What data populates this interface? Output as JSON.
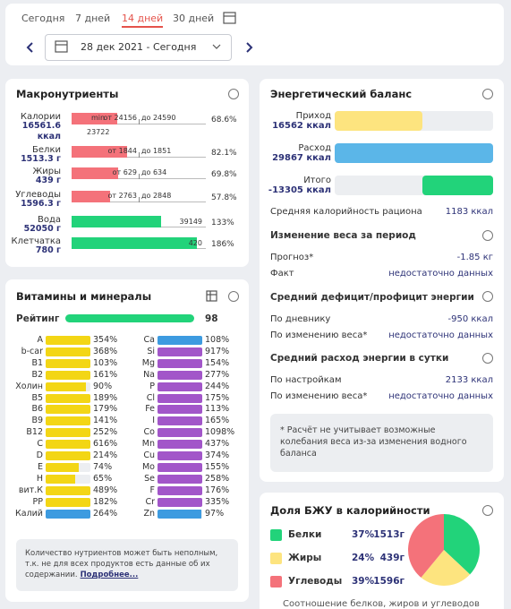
{
  "tabs": {
    "items": [
      "Сегодня",
      "7 дней",
      "14 дней",
      "30 дней"
    ],
    "active": 2
  },
  "date_range": "28 дек 2021 - Сегодня",
  "macros": {
    "title": "Макронутриенты",
    "rows": [
      {
        "name": "Калории",
        "amount": "16561.6 ккал",
        "percent": 68.6,
        "percent_label": "68.6%",
        "min": "min",
        "from": "от 24156",
        "to": "до 24590",
        "note": "23722"
      },
      {
        "name": "Белки",
        "amount": "1513.3 г",
        "percent": 82.1,
        "percent_label": "82.1%",
        "from": "от 1844",
        "to": "до 1851"
      },
      {
        "name": "Жиры",
        "amount": "439 г",
        "percent": 69.8,
        "percent_label": "69.8%",
        "from": "от 629",
        "to": "до 634"
      },
      {
        "name": "Углеводы",
        "amount": "1596.3 г",
        "percent": 57.8,
        "percent_label": "57.8%",
        "from": "от 2763",
        "to": "до 2848"
      },
      {
        "name": "Вода",
        "amount": "52050 г",
        "percent": 133,
        "percent_label": "133%",
        "note": "39149"
      },
      {
        "name": "Клетчатка",
        "amount": "780 г",
        "percent": 186,
        "percent_label": "186%",
        "note": "420"
      }
    ]
  },
  "vitamins": {
    "title": "Витамины и минералы",
    "rating": {
      "label": "Рейтинг",
      "value": 98
    },
    "left": [
      {
        "name": "A",
        "percent": 354,
        "label": "354%"
      },
      {
        "name": "b-car",
        "percent": 368,
        "label": "368%"
      },
      {
        "name": "B1",
        "percent": 103,
        "label": "103%"
      },
      {
        "name": "B2",
        "percent": 161,
        "label": "161%"
      },
      {
        "name": "Холин",
        "percent": 90,
        "label": "90%"
      },
      {
        "name": "B5",
        "percent": 189,
        "label": "189%"
      },
      {
        "name": "B6",
        "percent": 179,
        "label": "179%"
      },
      {
        "name": "B9",
        "percent": 141,
        "label": "141%"
      },
      {
        "name": "B12",
        "percent": 252,
        "label": "252%"
      },
      {
        "name": "C",
        "percent": 616,
        "label": "616%"
      },
      {
        "name": "D",
        "percent": 214,
        "label": "214%"
      },
      {
        "name": "E",
        "percent": 74,
        "label": "74%"
      },
      {
        "name": "H",
        "percent": 65,
        "label": "65%"
      },
      {
        "name": "вит.К",
        "percent": 489,
        "label": "489%"
      },
      {
        "name": "PP",
        "percent": 182,
        "label": "182%"
      },
      {
        "name": "Калий",
        "percent": 264,
        "label": "264%",
        "color": "#3d9be0"
      }
    ],
    "right": [
      {
        "name": "Ca",
        "percent": 108,
        "label": "108%",
        "color": "#3d9be0"
      },
      {
        "name": "Si",
        "percent": 917,
        "label": "917%"
      },
      {
        "name": "Mg",
        "percent": 154,
        "label": "154%"
      },
      {
        "name": "Na",
        "percent": 277,
        "label": "277%"
      },
      {
        "name": "P",
        "percent": 244,
        "label": "244%"
      },
      {
        "name": "Cl",
        "percent": 175,
        "label": "175%"
      },
      {
        "name": "Fe",
        "percent": 113,
        "label": "113%"
      },
      {
        "name": "I",
        "percent": 165,
        "label": "165%"
      },
      {
        "name": "Co",
        "percent": 1098,
        "label": "1098%"
      },
      {
        "name": "Mn",
        "percent": 437,
        "label": "437%"
      },
      {
        "name": "Cu",
        "percent": 374,
        "label": "374%"
      },
      {
        "name": "Mo",
        "percent": 155,
        "label": "155%"
      },
      {
        "name": "Se",
        "percent": 258,
        "label": "258%"
      },
      {
        "name": "F",
        "percent": 176,
        "label": "176%"
      },
      {
        "name": "Cr",
        "percent": 335,
        "label": "335%"
      },
      {
        "name": "Zn",
        "percent": 97,
        "label": "97%",
        "color": "#3d9be0"
      }
    ],
    "note": "Количество нутриентов может быть неполным, т.к. не для всех продуктов есть данные об их содержании.",
    "link": "Подробнее..."
  },
  "energy": {
    "title": "Энергетический баланс",
    "rows": [
      {
        "name": "Приход",
        "value": 16562,
        "label": "16562 ккал",
        "color": "#fde47f"
      },
      {
        "name": "Расход",
        "value": 29867,
        "label": "29867 ккал",
        "color": "#5bb6e8"
      },
      {
        "name": "Итого",
        "value": -13305,
        "label": "-13305 ккал",
        "color": "#22d37a"
      }
    ],
    "average": [
      "Средняя калорийность рациона",
      "1183 ккал"
    ],
    "sections": [
      {
        "title": "Изменение веса за период",
        "rows": [
          [
            "Прогноз*",
            "-1.85 кг"
          ],
          [
            "Факт",
            "недостаточно данных"
          ]
        ]
      },
      {
        "title": "Средний дефицит/профицит энергии",
        "rows": [
          [
            "По дневнику",
            "-950 ккал"
          ],
          [
            "По изменению веса*",
            "недостаточно данных"
          ]
        ]
      },
      {
        "title": "Средний расход энергии в сутки",
        "rows": [
          [
            "По настройкам",
            "2133 ккал"
          ],
          [
            "По изменению веса*",
            "недостаточно данных"
          ]
        ]
      }
    ],
    "note": "* Расчёт не учитывает возможные колебания веса из-за изменения водного баланса"
  },
  "bju": {
    "title": "Доля БЖУ в калорийности",
    "items": [
      {
        "name": "Белки",
        "value": 37,
        "value_label": "37%",
        "grams": "1513г",
        "color": "#22d37a"
      },
      {
        "name": "Жиры",
        "value": 24,
        "value_label": "24%",
        "grams": "439г",
        "color": "#fde47f"
      },
      {
        "name": "Углеводы",
        "value": 39,
        "value_label": "39%",
        "grams": "1596г",
        "color": "#f4727a"
      }
    ],
    "caption": "Соотношение белков, жиров и углеводов"
  }
}
